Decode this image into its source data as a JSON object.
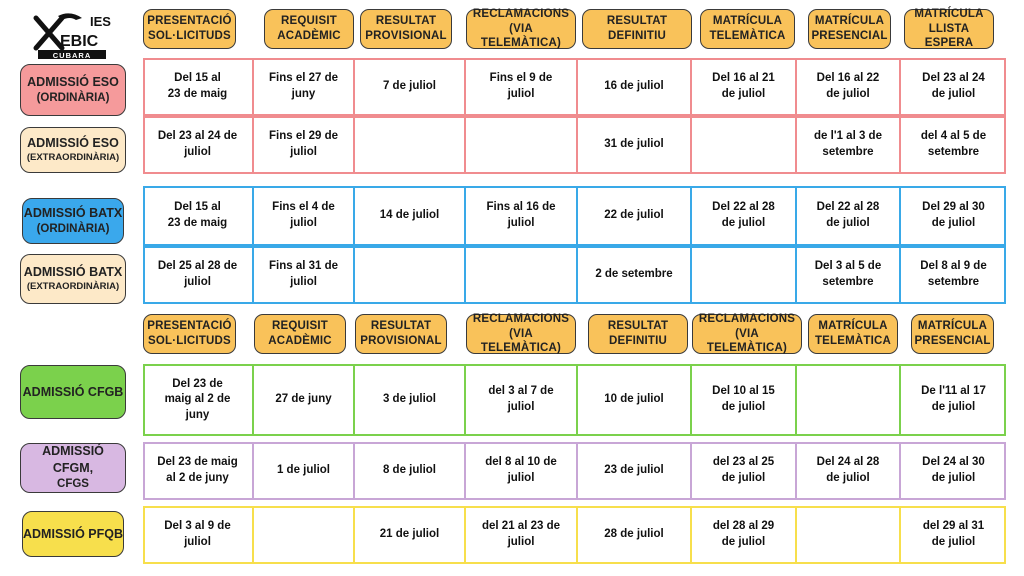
{
  "logo": {
    "top": "IES",
    "name": "EBIC",
    "bottom": "CUBARA"
  },
  "colors": {
    "header": "#f9c25a",
    "eso": "#f08c8f",
    "batx": "#39a9e8",
    "cf": "#7bd14c",
    "cfgm": "#c8a6d6",
    "pfqb": "#f7df4c"
  },
  "header1": [
    [
      "PRESENTACIÓ",
      "SOL·LICITUDS"
    ],
    [
      "REQUISIT",
      "ACADÈMIC"
    ],
    [
      "RESULTAT",
      "PROVISIONAL"
    ],
    [
      "RECLAMACIONS",
      "(VIA TELEMÀTICA)"
    ],
    [
      "RESULTAT",
      "DEFINITIU"
    ],
    [
      "MATRÍCULA",
      "TELEMÀTICA"
    ],
    [
      "MATRÍCULA",
      "PRESENCIAL"
    ],
    [
      "MATRÍCULA",
      "LLISTA ESPERA"
    ]
  ],
  "header2": [
    [
      "PRESENTACIÓ",
      "SOL·LICITUDS"
    ],
    [
      "REQUISIT",
      "ACADÈMIC"
    ],
    [
      "RESULTAT",
      "PROVISIONAL"
    ],
    [
      "RECLAMACIONS",
      "(VIA TELEMÀTICA)"
    ],
    [
      "RESULTAT",
      "DEFINITIU"
    ],
    [
      "RECLAMACIONS",
      "(VIA TELEMÀTICA)"
    ],
    [
      "MATRÍCULA",
      "TELEMÀTICA"
    ],
    [
      "MATRÍCULA",
      "PRESENCIAL"
    ]
  ],
  "rows": [
    {
      "label": [
        "ADMISSIÓ ESO",
        "(ORDINÀRIA)"
      ],
      "cells": [
        [
          "Del 15 al",
          "23 de maig"
        ],
        [
          "Fins el 27 de",
          "juny"
        ],
        [
          "7 de juliol"
        ],
        [
          "Fins el 9 de",
          "juliol"
        ],
        [
          "16 de juliol"
        ],
        [
          "Del 16 al 21",
          "de juliol"
        ],
        [
          "Del 16 al 22",
          "de juliol"
        ],
        [
          "Del 23 al 24",
          "de juliol"
        ]
      ]
    },
    {
      "label": [
        "ADMISSIÓ ESO",
        "(EXTRAORDINÀRIA)"
      ],
      "cells": [
        [
          "Del 23 al 24 de",
          "juliol"
        ],
        [
          "Fins el 29 de",
          "juliol"
        ],
        [],
        [],
        [
          "31 de juliol"
        ],
        [],
        [
          "de l'1 al 3 de",
          "setembre"
        ],
        [
          "del 4 al 5 de",
          "setembre"
        ]
      ]
    },
    {
      "label": [
        "ADMISSIÓ BATX",
        "(ORDINÀRIA)"
      ],
      "cells": [
        [
          "Del 15 al",
          "23 de maig"
        ],
        [
          "Fins el 4 de",
          "juliol"
        ],
        [
          "14 de juliol"
        ],
        [
          "Fins al 16 de",
          "juliol"
        ],
        [
          "22 de juliol"
        ],
        [
          "Del 22 al 28",
          "de juliol"
        ],
        [
          "Del 22 al 28",
          "de juliol"
        ],
        [
          "Del 29 al 30",
          "de juliol"
        ]
      ]
    },
    {
      "label": [
        "ADMISSIÓ BATX",
        "(EXTRAORDINÀRIA)"
      ],
      "cells": [
        [
          "Del 25 al 28 de",
          "juliol"
        ],
        [
          "Fins al 31 de",
          "juliol"
        ],
        [],
        [],
        [
          "2 de setembre"
        ],
        [],
        [
          "Del 3 al 5 de",
          "setembre"
        ],
        [
          "Del 8 al 9 de",
          "setembre"
        ]
      ]
    },
    {
      "label": [
        "ADMISSIÓ CFGB"
      ],
      "cells": [
        [
          "Del 23 de",
          "maig al 2 de",
          "juny"
        ],
        [
          "27 de juny"
        ],
        [
          "3 de juliol"
        ],
        [
          "del 3 al 7 de",
          "juliol"
        ],
        [
          "10 de juliol"
        ],
        [
          "Del 10 al 15",
          "de juliol"
        ],
        [],
        [
          "De l'11 al 17",
          "de juliol"
        ]
      ]
    },
    {
      "label": [
        "ADMISSIÓ  CFGM,",
        "CFGS"
      ],
      "cells": [
        [
          "Del 23 de maig",
          "al 2 de juny"
        ],
        [
          "1 de juliol"
        ],
        [
          "8 de juliol"
        ],
        [
          "del 8 al 10 de",
          "juliol"
        ],
        [
          "23 de juliol"
        ],
        [
          "del 23 al 25",
          "de juliol"
        ],
        [
          "Del 24 al 28",
          "de juliol"
        ],
        [
          "Del 24 al 30",
          "de juliol"
        ]
      ]
    },
    {
      "label": [
        "ADMISSIÓ PFQB"
      ],
      "cells": [
        [
          "Del 3 al 9 de",
          "juliol"
        ],
        [],
        [
          "21 de juliol"
        ],
        [
          "del 21 al 23 de",
          "juliol"
        ],
        [
          "28 de juliol"
        ],
        [
          "del 28 al 29",
          "de juliol"
        ],
        [],
        [
          "del 29 al 31",
          "de juliol"
        ]
      ]
    }
  ]
}
